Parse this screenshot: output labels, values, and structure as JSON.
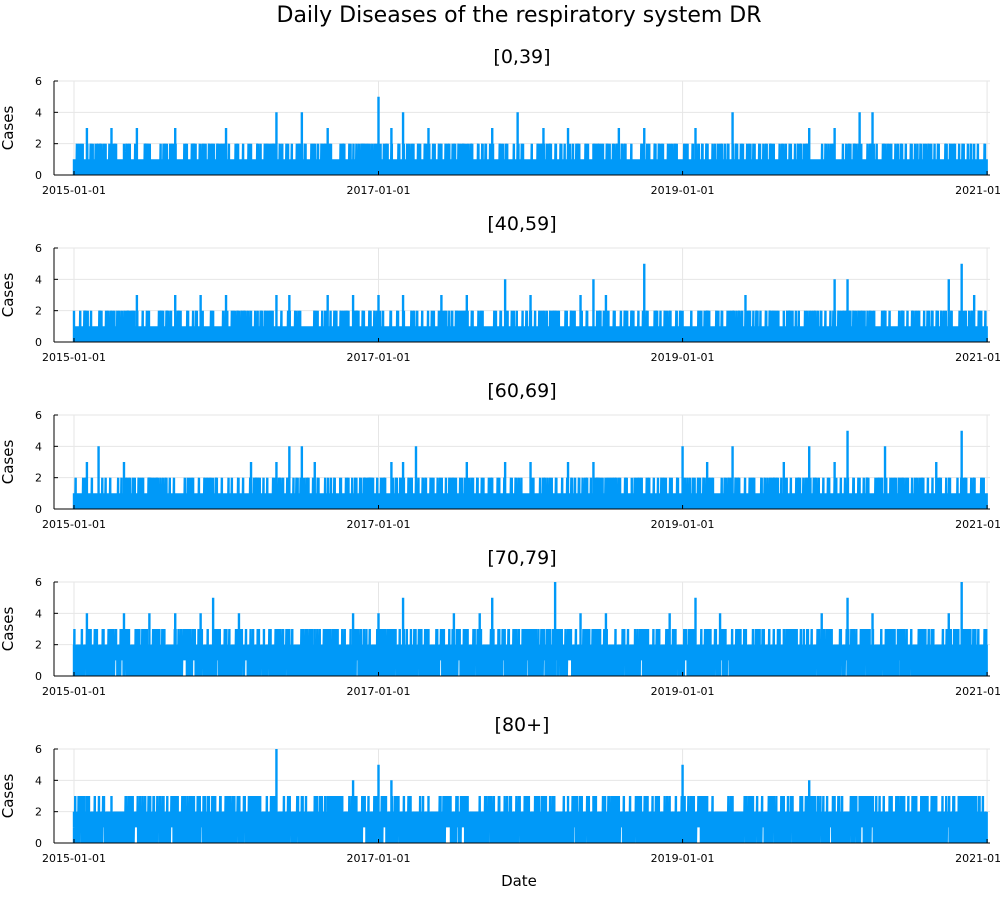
{
  "chart_data": {
    "type": "line",
    "title": "Daily Diseases of the respiratory system DR",
    "xlabel": "Date",
    "ylabel": "Cases",
    "series_color": "#0099f8",
    "grid": true,
    "xlim": [
      "2014-11-14",
      "2021-01-08"
    ],
    "xticks": [
      "2015-01-01",
      "2017-01-01",
      "2019-01-01",
      "2021-01-01"
    ],
    "ylim": [
      0,
      6
    ],
    "yticks": [
      0,
      2,
      4,
      6
    ],
    "start_date": "2015-01-01",
    "end_date": "2020-12-31",
    "panels": [
      {
        "title": "[0,39]",
        "base_level": 1,
        "spikes": [
          [
            "2015-02-01",
            3
          ],
          [
            "2015-03-01",
            2
          ],
          [
            "2015-04-01",
            3
          ],
          [
            "2015-05-01",
            2
          ],
          [
            "2015-06-01",
            3
          ],
          [
            "2015-09-01",
            3
          ],
          [
            "2015-11-01",
            2
          ],
          [
            "2016-01-01",
            3
          ],
          [
            "2016-03-01",
            2
          ],
          [
            "2016-05-01",
            4
          ],
          [
            "2016-07-01",
            4
          ],
          [
            "2016-09-01",
            3
          ],
          [
            "2016-12-01",
            2
          ],
          [
            "2017-01-01",
            5
          ],
          [
            "2017-02-01",
            3
          ],
          [
            "2017-03-01",
            4
          ],
          [
            "2017-05-01",
            3
          ],
          [
            "2017-08-01",
            2
          ],
          [
            "2017-10-01",
            3
          ],
          [
            "2017-12-01",
            4
          ],
          [
            "2018-02-01",
            3
          ],
          [
            "2018-04-01",
            3
          ],
          [
            "2018-06-01",
            2
          ],
          [
            "2018-08-01",
            3
          ],
          [
            "2018-10-01",
            3
          ],
          [
            "2019-02-01",
            3
          ],
          [
            "2019-05-01",
            4
          ],
          [
            "2019-08-01",
            2
          ],
          [
            "2019-11-01",
            3
          ],
          [
            "2020-01-01",
            3
          ],
          [
            "2020-03-01",
            4
          ],
          [
            "2020-04-01",
            4
          ],
          [
            "2020-06-01",
            2
          ],
          [
            "2020-12-01",
            2
          ]
        ]
      },
      {
        "title": "[40,59]",
        "base_level": 1,
        "spikes": [
          [
            "2015-02-01",
            2
          ],
          [
            "2015-04-01",
            2
          ],
          [
            "2015-06-01",
            3
          ],
          [
            "2015-09-01",
            3
          ],
          [
            "2015-11-01",
            3
          ],
          [
            "2016-01-01",
            3
          ],
          [
            "2016-03-01",
            2
          ],
          [
            "2016-05-01",
            3
          ],
          [
            "2016-06-01",
            3
          ],
          [
            "2016-09-01",
            3
          ],
          [
            "2016-11-01",
            3
          ],
          [
            "2017-01-01",
            3
          ],
          [
            "2017-03-01",
            3
          ],
          [
            "2017-06-01",
            3
          ],
          [
            "2017-08-01",
            3
          ],
          [
            "2017-11-01",
            4
          ],
          [
            "2018-01-01",
            3
          ],
          [
            "2018-05-01",
            3
          ],
          [
            "2018-06-01",
            4
          ],
          [
            "2018-07-01",
            3
          ],
          [
            "2018-10-01",
            5
          ],
          [
            "2019-01-01",
            2
          ],
          [
            "2019-06-01",
            3
          ],
          [
            "2019-09-01",
            2
          ],
          [
            "2020-01-01",
            4
          ],
          [
            "2020-02-01",
            4
          ],
          [
            "2020-04-01",
            2
          ],
          [
            "2020-10-01",
            4
          ],
          [
            "2020-11-01",
            5
          ],
          [
            "2020-12-01",
            3
          ]
        ]
      },
      {
        "title": "[60,69]",
        "base_level": 1,
        "spikes": [
          [
            "2015-02-01",
            3
          ],
          [
            "2015-03-01",
            4
          ],
          [
            "2015-05-01",
            3
          ],
          [
            "2015-07-01",
            2
          ],
          [
            "2015-10-01",
            2
          ],
          [
            "2015-12-01",
            2
          ],
          [
            "2016-03-01",
            3
          ],
          [
            "2016-05-01",
            3
          ],
          [
            "2016-06-01",
            4
          ],
          [
            "2016-07-01",
            4
          ],
          [
            "2016-08-01",
            3
          ],
          [
            "2016-10-01",
            2
          ],
          [
            "2017-02-01",
            3
          ],
          [
            "2017-03-01",
            3
          ],
          [
            "2017-04-01",
            4
          ],
          [
            "2017-08-01",
            3
          ],
          [
            "2017-11-01",
            3
          ],
          [
            "2018-01-01",
            3
          ],
          [
            "2018-04-01",
            3
          ],
          [
            "2018-06-01",
            3
          ],
          [
            "2018-09-01",
            2
          ],
          [
            "2019-01-01",
            4
          ],
          [
            "2019-03-01",
            3
          ],
          [
            "2019-05-01",
            4
          ],
          [
            "2019-09-01",
            3
          ],
          [
            "2019-11-01",
            4
          ],
          [
            "2020-01-01",
            3
          ],
          [
            "2020-02-01",
            5
          ],
          [
            "2020-05-01",
            4
          ],
          [
            "2020-09-01",
            3
          ],
          [
            "2020-11-01",
            5
          ],
          [
            "2020-12-01",
            2
          ]
        ]
      },
      {
        "title": "[70,79]",
        "base_level": 2,
        "spikes": [
          [
            "2015-02-01",
            4
          ],
          [
            "2015-04-01",
            3
          ],
          [
            "2015-05-01",
            4
          ],
          [
            "2015-07-01",
            4
          ],
          [
            "2015-09-01",
            4
          ],
          [
            "2015-11-01",
            4
          ],
          [
            "2015-12-01",
            5
          ],
          [
            "2016-02-01",
            4
          ],
          [
            "2016-04-01",
            3
          ],
          [
            "2016-06-01",
            3
          ],
          [
            "2016-08-01",
            3
          ],
          [
            "2016-11-01",
            4
          ],
          [
            "2017-01-01",
            4
          ],
          [
            "2017-03-01",
            5
          ],
          [
            "2017-05-01",
            3
          ],
          [
            "2017-07-01",
            4
          ],
          [
            "2017-09-01",
            4
          ],
          [
            "2017-10-01",
            5
          ],
          [
            "2018-01-01",
            3
          ],
          [
            "2018-03-01",
            6
          ],
          [
            "2018-05-01",
            4
          ],
          [
            "2018-07-01",
            4
          ],
          [
            "2018-10-01",
            3
          ],
          [
            "2018-12-01",
            4
          ],
          [
            "2019-02-01",
            5
          ],
          [
            "2019-04-01",
            4
          ],
          [
            "2019-06-01",
            3
          ],
          [
            "2019-09-01",
            3
          ],
          [
            "2019-12-01",
            4
          ],
          [
            "2020-02-01",
            5
          ],
          [
            "2020-04-01",
            4
          ],
          [
            "2020-06-01",
            3
          ],
          [
            "2020-10-01",
            4
          ],
          [
            "2020-11-01",
            6
          ],
          [
            "2020-12-01",
            3
          ]
        ]
      },
      {
        "title": "[80+]",
        "base_level": 2,
        "spikes": [
          [
            "2015-02-01",
            3
          ],
          [
            "2015-04-01",
            3
          ],
          [
            "2015-07-01",
            3
          ],
          [
            "2015-10-01",
            3
          ],
          [
            "2016-01-01",
            3
          ],
          [
            "2016-03-01",
            3
          ],
          [
            "2016-05-01",
            6
          ],
          [
            "2016-07-01",
            3
          ],
          [
            "2016-09-01",
            3
          ],
          [
            "2016-11-01",
            4
          ],
          [
            "2017-01-01",
            5
          ],
          [
            "2017-02-01",
            4
          ],
          [
            "2017-05-01",
            3
          ],
          [
            "2017-08-01",
            3
          ],
          [
            "2017-10-01",
            2
          ],
          [
            "2018-02-01",
            3
          ],
          [
            "2018-04-01",
            3
          ],
          [
            "2018-06-01",
            3
          ],
          [
            "2018-08-01",
            3
          ],
          [
            "2018-11-01",
            3
          ],
          [
            "2019-01-01",
            5
          ],
          [
            "2019-03-01",
            3
          ],
          [
            "2019-06-01",
            3
          ],
          [
            "2019-09-01",
            3
          ],
          [
            "2019-11-01",
            4
          ],
          [
            "2020-01-01",
            3
          ],
          [
            "2020-03-01",
            3
          ],
          [
            "2020-06-01",
            3
          ],
          [
            "2020-08-01",
            3
          ],
          [
            "2020-11-01",
            3
          ],
          [
            "2020-12-01",
            3
          ]
        ]
      }
    ]
  }
}
